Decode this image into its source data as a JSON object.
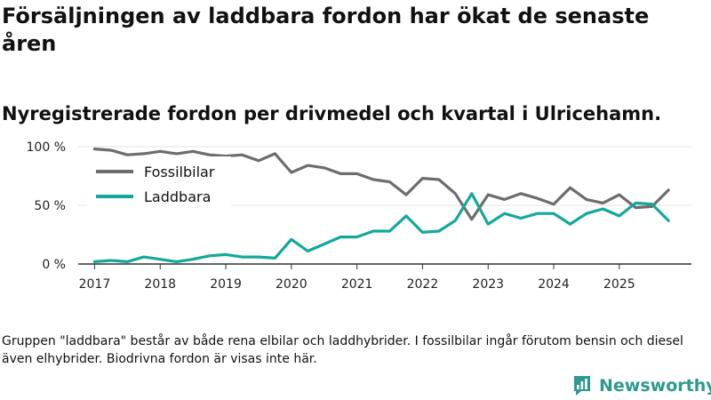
{
  "header": {
    "title": "Försäljningen av laddbara fordon har ökat de senaste åren",
    "subtitle": "Nyregistrerade fordon per drivmedel och kvartal i Ulricehamn."
  },
  "footer": {
    "note": "Gruppen \"laddbara\" består av både rena elbilar och laddhybrider. I fossilbilar ingår förutom bensin och diesel även elhybrider. Biodrivna fordon är visas inte här.",
    "brand": "Newsworthy"
  },
  "colors": {
    "fossil": "#6d6c70",
    "laddbara": "#14a89b",
    "grid": "#e3e3e3",
    "axis": "#333333",
    "brand": "#2e9a8f"
  },
  "chart_data": {
    "type": "line",
    "title": "Försäljningen av laddbara fordon har ökat de senaste åren",
    "xlabel": "",
    "ylabel": "",
    "x_start": 2017.0,
    "x_step": 0.25,
    "xlim": [
      2016.75,
      2026.1
    ],
    "ylim": [
      0,
      100
    ],
    "y_ticks": [
      0,
      50,
      100
    ],
    "y_tick_labels": [
      "0 %",
      "50 %",
      "100 %"
    ],
    "x_ticks": [
      2017,
      2018,
      2019,
      2020,
      2021,
      2022,
      2023,
      2024,
      2025
    ],
    "x_tick_labels": [
      "2017",
      "2018",
      "2019",
      "2020",
      "2021",
      "2022",
      "2023",
      "2024",
      "2025"
    ],
    "legend": "top-left",
    "series": [
      {
        "name": "Fossilbilar",
        "color": "#6d6c70",
        "values": [
          98,
          97,
          93,
          94,
          96,
          94,
          96,
          93,
          92,
          93,
          88,
          94,
          78,
          84,
          82,
          77,
          77,
          72,
          70,
          59,
          73,
          72,
          60,
          38,
          59,
          55,
          60,
          56,
          51,
          65,
          55,
          52,
          59,
          48,
          49,
          63
        ]
      },
      {
        "name": "Laddbara",
        "color": "#14a89b",
        "values": [
          2,
          3,
          2,
          6,
          4,
          2,
          4,
          7,
          8,
          6,
          6,
          5,
          21,
          11,
          17,
          23,
          23,
          28,
          28,
          41,
          27,
          28,
          37,
          60,
          34,
          43,
          39,
          43,
          43,
          34,
          43,
          47,
          41,
          52,
          51,
          37
        ]
      }
    ]
  }
}
